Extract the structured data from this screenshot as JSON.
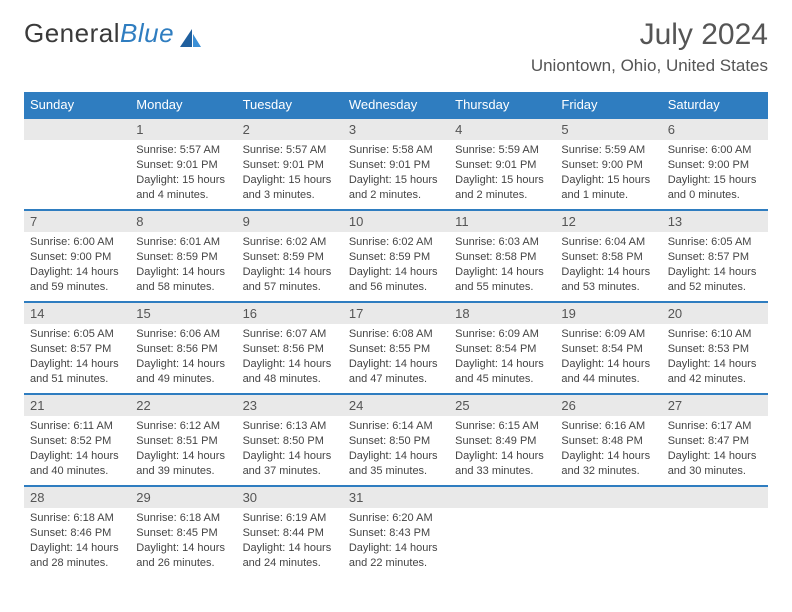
{
  "logo": {
    "word1": "General",
    "word2": "Blue"
  },
  "title": "July 2024",
  "location": "Uniontown, Ohio, United States",
  "header_color": "#2f7dc0",
  "daybar_color": "#e9e9e9",
  "weekdays": [
    "Sunday",
    "Monday",
    "Tuesday",
    "Wednesday",
    "Thursday",
    "Friday",
    "Saturday"
  ],
  "first_weekday_index": 1,
  "days": [
    {
      "n": 1,
      "sunrise": "5:57 AM",
      "sunset": "9:01 PM",
      "daylight": "15 hours and 4 minutes."
    },
    {
      "n": 2,
      "sunrise": "5:57 AM",
      "sunset": "9:01 PM",
      "daylight": "15 hours and 3 minutes."
    },
    {
      "n": 3,
      "sunrise": "5:58 AM",
      "sunset": "9:01 PM",
      "daylight": "15 hours and 2 minutes."
    },
    {
      "n": 4,
      "sunrise": "5:59 AM",
      "sunset": "9:01 PM",
      "daylight": "15 hours and 2 minutes."
    },
    {
      "n": 5,
      "sunrise": "5:59 AM",
      "sunset": "9:00 PM",
      "daylight": "15 hours and 1 minute."
    },
    {
      "n": 6,
      "sunrise": "6:00 AM",
      "sunset": "9:00 PM",
      "daylight": "15 hours and 0 minutes."
    },
    {
      "n": 7,
      "sunrise": "6:00 AM",
      "sunset": "9:00 PM",
      "daylight": "14 hours and 59 minutes."
    },
    {
      "n": 8,
      "sunrise": "6:01 AM",
      "sunset": "8:59 PM",
      "daylight": "14 hours and 58 minutes."
    },
    {
      "n": 9,
      "sunrise": "6:02 AM",
      "sunset": "8:59 PM",
      "daylight": "14 hours and 57 minutes."
    },
    {
      "n": 10,
      "sunrise": "6:02 AM",
      "sunset": "8:59 PM",
      "daylight": "14 hours and 56 minutes."
    },
    {
      "n": 11,
      "sunrise": "6:03 AM",
      "sunset": "8:58 PM",
      "daylight": "14 hours and 55 minutes."
    },
    {
      "n": 12,
      "sunrise": "6:04 AM",
      "sunset": "8:58 PM",
      "daylight": "14 hours and 53 minutes."
    },
    {
      "n": 13,
      "sunrise": "6:05 AM",
      "sunset": "8:57 PM",
      "daylight": "14 hours and 52 minutes."
    },
    {
      "n": 14,
      "sunrise": "6:05 AM",
      "sunset": "8:57 PM",
      "daylight": "14 hours and 51 minutes."
    },
    {
      "n": 15,
      "sunrise": "6:06 AM",
      "sunset": "8:56 PM",
      "daylight": "14 hours and 49 minutes."
    },
    {
      "n": 16,
      "sunrise": "6:07 AM",
      "sunset": "8:56 PM",
      "daylight": "14 hours and 48 minutes."
    },
    {
      "n": 17,
      "sunrise": "6:08 AM",
      "sunset": "8:55 PM",
      "daylight": "14 hours and 47 minutes."
    },
    {
      "n": 18,
      "sunrise": "6:09 AM",
      "sunset": "8:54 PM",
      "daylight": "14 hours and 45 minutes."
    },
    {
      "n": 19,
      "sunrise": "6:09 AM",
      "sunset": "8:54 PM",
      "daylight": "14 hours and 44 minutes."
    },
    {
      "n": 20,
      "sunrise": "6:10 AM",
      "sunset": "8:53 PM",
      "daylight": "14 hours and 42 minutes."
    },
    {
      "n": 21,
      "sunrise": "6:11 AM",
      "sunset": "8:52 PM",
      "daylight": "14 hours and 40 minutes."
    },
    {
      "n": 22,
      "sunrise": "6:12 AM",
      "sunset": "8:51 PM",
      "daylight": "14 hours and 39 minutes."
    },
    {
      "n": 23,
      "sunrise": "6:13 AM",
      "sunset": "8:50 PM",
      "daylight": "14 hours and 37 minutes."
    },
    {
      "n": 24,
      "sunrise": "6:14 AM",
      "sunset": "8:50 PM",
      "daylight": "14 hours and 35 minutes."
    },
    {
      "n": 25,
      "sunrise": "6:15 AM",
      "sunset": "8:49 PM",
      "daylight": "14 hours and 33 minutes."
    },
    {
      "n": 26,
      "sunrise": "6:16 AM",
      "sunset": "8:48 PM",
      "daylight": "14 hours and 32 minutes."
    },
    {
      "n": 27,
      "sunrise": "6:17 AM",
      "sunset": "8:47 PM",
      "daylight": "14 hours and 30 minutes."
    },
    {
      "n": 28,
      "sunrise": "6:18 AM",
      "sunset": "8:46 PM",
      "daylight": "14 hours and 28 minutes."
    },
    {
      "n": 29,
      "sunrise": "6:18 AM",
      "sunset": "8:45 PM",
      "daylight": "14 hours and 26 minutes."
    },
    {
      "n": 30,
      "sunrise": "6:19 AM",
      "sunset": "8:44 PM",
      "daylight": "14 hours and 24 minutes."
    },
    {
      "n": 31,
      "sunrise": "6:20 AM",
      "sunset": "8:43 PM",
      "daylight": "14 hours and 22 minutes."
    }
  ],
  "labels": {
    "sunrise": "Sunrise:",
    "sunset": "Sunset:",
    "daylight": "Daylight:"
  }
}
